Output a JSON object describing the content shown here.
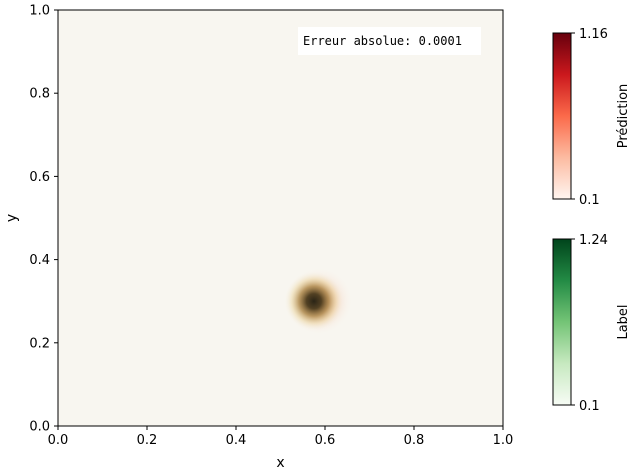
{
  "chart_data": {
    "type": "heatmap",
    "xlabel": "x",
    "ylabel": "y",
    "xlim": [
      0.0,
      1.0
    ],
    "ylim": [
      0.0,
      1.0
    ],
    "xticks": [
      "0.0",
      "0.2",
      "0.4",
      "0.6",
      "0.8",
      "1.0"
    ],
    "yticks": [
      "0.0",
      "0.2",
      "0.4",
      "0.6",
      "0.8",
      "1.0"
    ],
    "annotation": "Erreur absolue: 0.0001",
    "background_color": "#f8f6f0",
    "blob": {
      "center_x": 0.575,
      "center_y": 0.3,
      "radius": 0.09
    },
    "colorbars": [
      {
        "label": "Prédiction",
        "min": "0.1",
        "max": "1.16",
        "colors": [
          "#fff5f0",
          "#fcbba1",
          "#fb6a4a",
          "#cb181d",
          "#67000d"
        ]
      },
      {
        "label": "Label",
        "min": "0.1",
        "max": "1.24",
        "colors": [
          "#f7fcf5",
          "#c7e9c0",
          "#74c476",
          "#238b45",
          "#00441b"
        ]
      }
    ]
  }
}
